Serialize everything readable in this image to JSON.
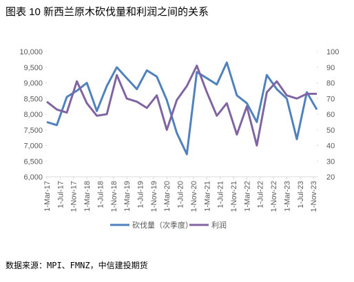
{
  "chart_data": {
    "type": "line",
    "title": "图表 10 新西兰原木砍伐量和利润之间的关系",
    "source": "数据来源：MPI、FMNZ，中信建投期货",
    "x": [
      0,
      3,
      6,
      9,
      12,
      15,
      18,
      21,
      24,
      27,
      30,
      33,
      36,
      39,
      42,
      45,
      48,
      51,
      54,
      57,
      60,
      63,
      66,
      69,
      72,
      75,
      78,
      81
    ],
    "xlim": [
      0,
      81
    ],
    "xticks": [
      {
        "value": 0,
        "label": "1-Mar-17"
      },
      {
        "value": 4,
        "label": "1-Jul-17"
      },
      {
        "value": 8,
        "label": "1-Nov-17"
      },
      {
        "value": 12,
        "label": "1-Mar-18"
      },
      {
        "value": 16,
        "label": "1-Jul-18"
      },
      {
        "value": 20,
        "label": "1-Nov-18"
      },
      {
        "value": 24,
        "label": "1-Mar-19"
      },
      {
        "value": 28,
        "label": "1-Jul-19"
      },
      {
        "value": 32,
        "label": "1-Nov-19"
      },
      {
        "value": 36,
        "label": "1-Mar-20"
      },
      {
        "value": 40,
        "label": "1-Jul-20"
      },
      {
        "value": 44,
        "label": "1-Nov-20"
      },
      {
        "value": 48,
        "label": "1-Mar-21"
      },
      {
        "value": 52,
        "label": "1-Jul-21"
      },
      {
        "value": 56,
        "label": "1-Nov-21"
      },
      {
        "value": 60,
        "label": "1-Mar-22"
      },
      {
        "value": 64,
        "label": "1-Jul-22"
      },
      {
        "value": 68,
        "label": "1-Nov-22"
      },
      {
        "value": 72,
        "label": "1-Mar-23"
      },
      {
        "value": 76,
        "label": "1-Jul-23"
      },
      {
        "value": 80,
        "label": "1-Nov-23"
      }
    ],
    "ylim": [
      6000,
      10000
    ],
    "yticks": [
      {
        "value": 6000,
        "label": "6,000"
      },
      {
        "value": 6500,
        "label": "6,500"
      },
      {
        "value": 7000,
        "label": "7,000"
      },
      {
        "value": 7500,
        "label": "7,500"
      },
      {
        "value": 8000,
        "label": "8,000"
      },
      {
        "value": 8500,
        "label": "8,500"
      },
      {
        "value": 9000,
        "label": "9,000"
      },
      {
        "value": 9500,
        "label": "9,500"
      },
      {
        "value": 10000,
        "label": "10,000"
      }
    ],
    "y2lim": [
      20,
      100
    ],
    "y2ticks": [
      20,
      30,
      40,
      50,
      60,
      70,
      80,
      90,
      100
    ],
    "series": [
      {
        "name": "砍伐量（次季度）",
        "color": "#4f81bd",
        "values": [
          7750,
          7650,
          8550,
          8750,
          9000,
          8100,
          8900,
          9500,
          9150,
          8800,
          9400,
          9200,
          8450,
          7400,
          6720,
          9350,
          9150,
          8950,
          9650,
          8600,
          8350,
          7750,
          9250,
          8800,
          8500,
          7200,
          8700,
          8150
        ]
      },
      {
        "name": "利润",
        "color": "#8064a2",
        "axis": "y2",
        "values": [
          68,
          63,
          61,
          81,
          67,
          59,
          60,
          85,
          70,
          68,
          64,
          72,
          50,
          69,
          78,
          91,
          74,
          59,
          67,
          47,
          65,
          40,
          74,
          81,
          72,
          70,
          73,
          73
        ]
      }
    ]
  }
}
